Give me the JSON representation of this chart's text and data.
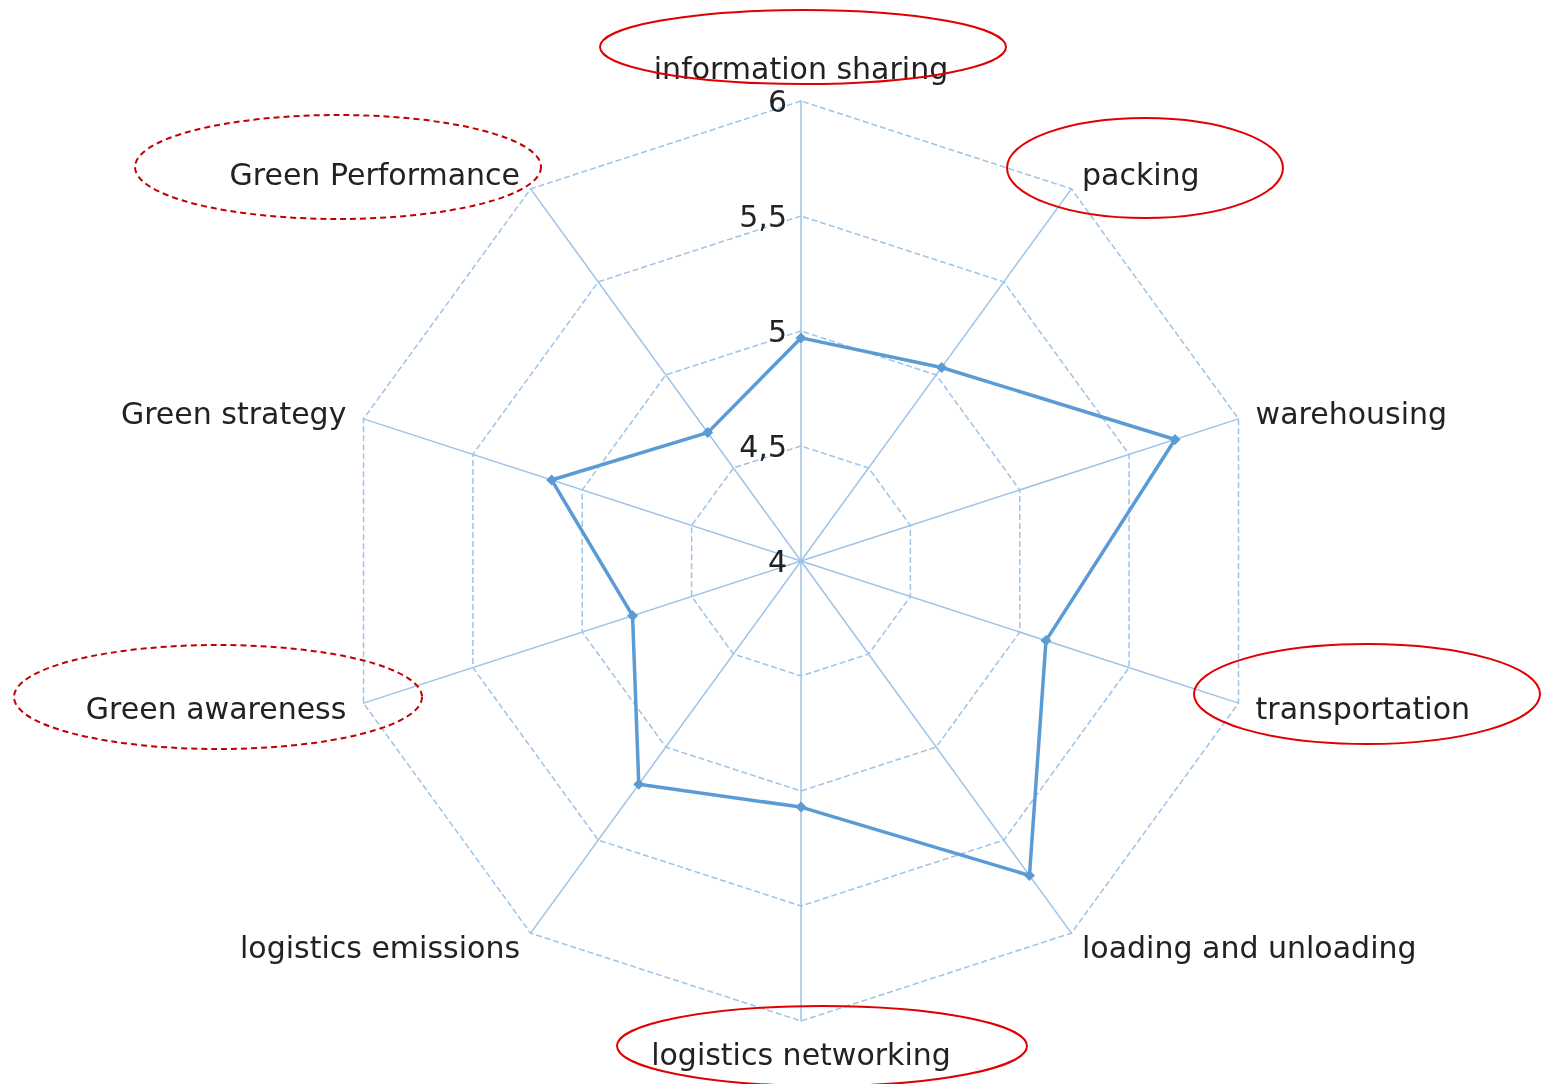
{
  "chart_data": {
    "type": "radar",
    "categories": [
      "information sharing",
      "packing",
      "warehousing",
      "transportation",
      "loading and unloading",
      "logistics networking",
      "logistics emissions",
      "Green awareness",
      "Green strategy",
      "Green Performance"
    ],
    "series": [
      {
        "color": "#5b9bd5",
        "values": [
          4.97,
          5.04,
          5.71,
          5.12,
          5.69,
          5.07,
          5.2,
          4.77,
          5.14,
          4.69
        ]
      }
    ],
    "ylim": [
      4,
      6
    ],
    "yticks": [
      4,
      {
        "value": 4.5,
        "label": "4,5"
      },
      5,
      {
        "value": 5.5,
        "label": "5,5"
      },
      6
    ],
    "marker": "diamond",
    "line_style": "solid"
  }
}
